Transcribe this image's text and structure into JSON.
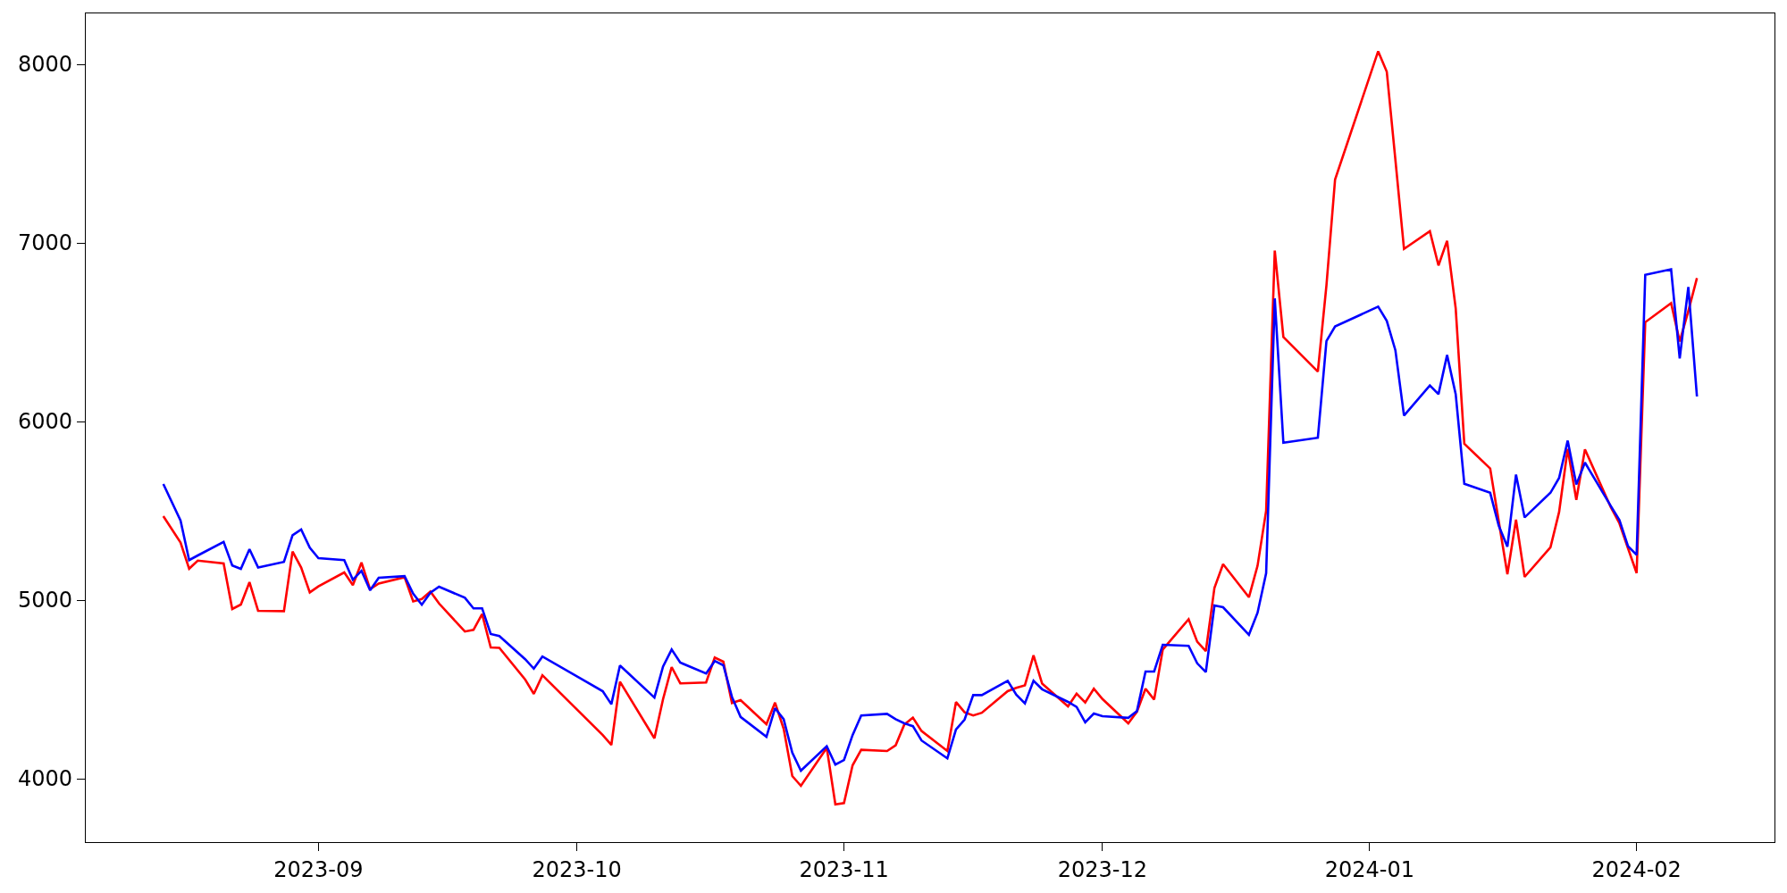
{
  "chart_data": {
    "type": "line",
    "x": [
      "2023-08-14",
      "2023-08-16",
      "2023-08-17",
      "2023-08-18",
      "2023-08-21",
      "2023-08-22",
      "2023-08-23",
      "2023-08-24",
      "2023-08-25",
      "2023-08-28",
      "2023-08-29",
      "2023-08-30",
      "2023-08-31",
      "2023-09-01",
      "2023-09-04",
      "2023-09-05",
      "2023-09-06",
      "2023-09-07",
      "2023-09-08",
      "2023-09-11",
      "2023-09-12",
      "2023-09-13",
      "2023-09-14",
      "2023-09-15",
      "2023-09-18",
      "2023-09-19",
      "2023-09-20",
      "2023-09-21",
      "2023-09-22",
      "2023-09-25",
      "2023-09-26",
      "2023-09-27",
      "2023-10-04",
      "2023-10-05",
      "2023-10-06",
      "2023-10-10",
      "2023-10-11",
      "2023-10-12",
      "2023-10-13",
      "2023-10-16",
      "2023-10-17",
      "2023-10-18",
      "2023-10-19",
      "2023-10-20",
      "2023-10-23",
      "2023-10-24",
      "2023-10-25",
      "2023-10-26",
      "2023-10-27",
      "2023-10-30",
      "2023-10-31",
      "2023-11-01",
      "2023-11-02",
      "2023-11-03",
      "2023-11-06",
      "2023-11-07",
      "2023-11-08",
      "2023-11-09",
      "2023-11-10",
      "2023-11-13",
      "2023-11-14",
      "2023-11-15",
      "2023-11-16",
      "2023-11-17",
      "2023-11-20",
      "2023-11-21",
      "2023-11-22",
      "2023-11-23",
      "2023-11-24",
      "2023-11-27",
      "2023-11-28",
      "2023-11-29",
      "2023-11-30",
      "2023-12-01",
      "2023-12-04",
      "2023-12-05",
      "2023-12-06",
      "2023-12-07",
      "2023-12-08",
      "2023-12-11",
      "2023-12-12",
      "2023-12-13",
      "2023-12-14",
      "2023-12-15",
      "2023-12-18",
      "2023-12-19",
      "2023-12-20",
      "2023-12-21",
      "2023-12-22",
      "2023-12-26",
      "2023-12-27",
      "2023-12-28",
      "2024-01-02",
      "2024-01-03",
      "2024-01-04",
      "2024-01-05",
      "2024-01-08",
      "2024-01-09",
      "2024-01-10",
      "2024-01-11",
      "2024-01-12",
      "2024-01-15",
      "2024-01-16",
      "2024-01-17",
      "2024-01-18",
      "2024-01-19",
      "2024-01-22",
      "2024-01-23",
      "2024-01-24",
      "2024-01-25",
      "2024-01-26",
      "2024-01-29",
      "2024-01-30",
      "2024-01-31",
      "2024-02-01",
      "2024-02-02",
      "2024-02-05",
      "2024-02-06",
      "2024-02-07",
      "2024-02-08"
    ],
    "series": [
      {
        "color": "#ff0000",
        "values": [
          5470,
          5322,
          5176,
          5221,
          5205,
          4950,
          4975,
          5100,
          4940,
          4938,
          5272,
          5182,
          5043,
          5077,
          5155,
          5084,
          5210,
          5061,
          5093,
          5128,
          4993,
          5006,
          5048,
          4981,
          4824,
          4833,
          4922,
          4735,
          4733,
          4555,
          4475,
          4579,
          4244,
          4189,
          4543,
          4226,
          4445,
          4625,
          4534,
          4539,
          4678,
          4655,
          4424,
          4440,
          4305,
          4426,
          4280,
          4015,
          3960,
          4173,
          3856,
          3863,
          4075,
          4162,
          4155,
          4187,
          4303,
          4342,
          4267,
          4155,
          4429,
          4372,
          4354,
          4369,
          4490,
          4509,
          4523,
          4691,
          4532,
          4405,
          4476,
          4427,
          4504,
          4446,
          4310,
          4375,
          4504,
          4443,
          4723,
          4893,
          4767,
          4714,
          5069,
          5201,
          5016,
          5192,
          5500,
          6957,
          6473,
          6279,
          6763,
          7355,
          8073,
          7959,
          7466,
          6966,
          7065,
          6874,
          7012,
          6633,
          5875,
          5737,
          5440,
          5145,
          5450,
          5130,
          5296,
          5493,
          5847,
          5561,
          5844,
          5520,
          5430,
          5290,
          5151,
          6556,
          6663,
          6448,
          6618,
          6803
        ]
      },
      {
        "color": "#0000ff",
        "values": [
          5650,
          5445,
          5224,
          5250,
          5326,
          5194,
          5175,
          5285,
          5183,
          5214,
          5363,
          5395,
          5294,
          5235,
          5224,
          5114,
          5164,
          5055,
          5125,
          5134,
          5036,
          4974,
          5041,
          5075,
          5013,
          4954,
          4954,
          4810,
          4799,
          4669,
          4616,
          4684,
          4490,
          4417,
          4634,
          4454,
          4628,
          4723,
          4650,
          4589,
          4659,
          4635,
          4458,
          4346,
          4235,
          4395,
          4333,
          4146,
          4045,
          4182,
          4079,
          4104,
          4244,
          4354,
          4363,
          4333,
          4310,
          4294,
          4214,
          4114,
          4276,
          4331,
          4468,
          4468,
          4548,
          4470,
          4422,
          4548,
          4501,
          4430,
          4402,
          4316,
          4365,
          4350,
          4341,
          4378,
          4600,
          4600,
          4750,
          4744,
          4646,
          4597,
          4970,
          4960,
          4806,
          4929,
          5151,
          6689,
          5881,
          5909,
          6451,
          6532,
          6643,
          6563,
          6399,
          6033,
          6202,
          6153,
          6372,
          6153,
          5651,
          5601,
          5416,
          5299,
          5703,
          5463,
          5601,
          5684,
          5893,
          5647,
          5770,
          5527,
          5449,
          5302,
          5253,
          6821,
          6852,
          6353,
          6753,
          6140
        ]
      }
    ],
    "xlim": [
      "2023-08-05",
      "2024-02-17"
    ],
    "xticks": [
      "2023-09",
      "2023-10",
      "2023-11",
      "2023-12",
      "2024-01",
      "2024-02"
    ],
    "ylim": [
      3645,
      8285
    ],
    "yticks": [
      4000,
      5000,
      6000,
      7000,
      8000
    ],
    "line_style": "solid"
  }
}
